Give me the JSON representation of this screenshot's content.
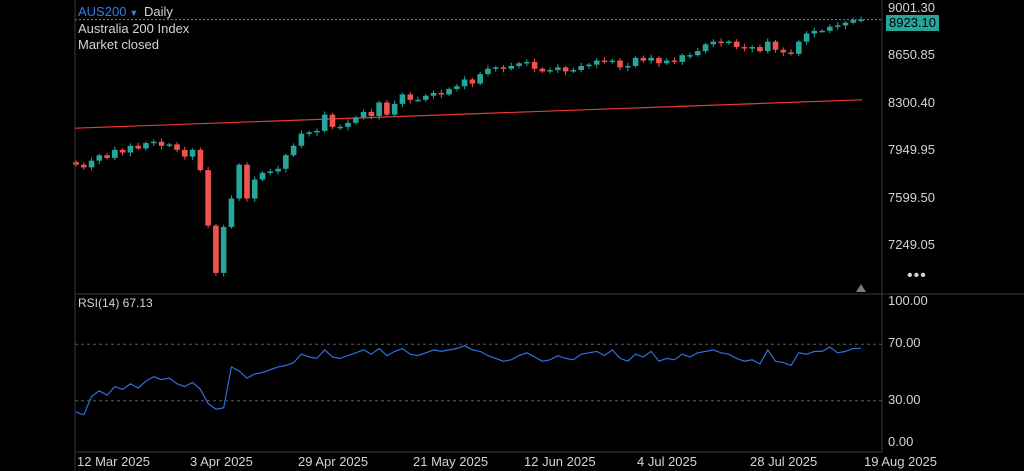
{
  "header": {
    "symbol": "AUS200",
    "interval": "Daily",
    "name": "Australia 200 Index",
    "status": "Market closed"
  },
  "last_price_label": "8923.10",
  "rsi_label": "RSI(14) 67.13",
  "more_label": "•••",
  "colors": {
    "up": "#26a69a",
    "down": "#ef5350",
    "ma": "#e53935",
    "rsi": "#2f6fe0",
    "grid": "#2a2e39",
    "price_line": "#26a69a"
  },
  "chart_data": [
    {
      "type": "candlestick",
      "title": "",
      "ylabel": "",
      "y_ticks": [
        "9001.30",
        "8650.85",
        "8300.40",
        "7949.95",
        "7599.50",
        "7249.05"
      ],
      "ylim": [
        6950,
        9060
      ],
      "x_ticks": [
        "12 Mar 2025",
        "3 Apr 2025",
        "29 Apr 2025",
        "21 May 2025",
        "12 Jun 2025",
        "4 Jul 2025",
        "28 Jul 2025",
        "19 Aug 2025"
      ],
      "ohlc_close": [
        7850,
        7830,
        7880,
        7920,
        7900,
        7960,
        7940,
        7990,
        7970,
        8010,
        8020,
        7990,
        8000,
        7960,
        7910,
        7960,
        7810,
        7400,
        7050,
        7390,
        7600,
        7850,
        7600,
        7740,
        7790,
        7800,
        7820,
        7920,
        7990,
        8080,
        8090,
        8100,
        8220,
        8130,
        8130,
        8160,
        8200,
        8240,
        8210,
        8310,
        8220,
        8300,
        8370,
        8330,
        8330,
        8360,
        8380,
        8370,
        8410,
        8430,
        8480,
        8450,
        8520,
        8560,
        8570,
        8560,
        8580,
        8600,
        8610,
        8560,
        8540,
        8550,
        8570,
        8540,
        8550,
        8580,
        8590,
        8620,
        8610,
        8620,
        8570,
        8580,
        8640,
        8620,
        8640,
        8600,
        8620,
        8610,
        8660,
        8660,
        8690,
        8740,
        8760,
        8750,
        8760,
        8720,
        8710,
        8720,
        8690,
        8760,
        8700,
        8680,
        8670,
        8760,
        8820,
        8840,
        8840,
        8870,
        8880,
        8900,
        8920,
        8923.1
      ],
      "moving_average": {
        "start": 8120,
        "end": 8330
      },
      "last_price": 8923.1
    },
    {
      "type": "line",
      "title": "RSI(14) 67.13",
      "ylabel": "",
      "y_ticks": [
        "100.00",
        "70.00",
        "30.00",
        "0.00"
      ],
      "ylim": [
        0,
        100
      ],
      "values": [
        22,
        20,
        33,
        37,
        34,
        40,
        38,
        42,
        39,
        44,
        47,
        45,
        46,
        42,
        40,
        43,
        38,
        28,
        24,
        25,
        54,
        51,
        46,
        49,
        50,
        52,
        54,
        55,
        57,
        63,
        61,
        60,
        66,
        61,
        60,
        62,
        64,
        66,
        63,
        67,
        62,
        65,
        67,
        63,
        62,
        64,
        66,
        65,
        66,
        67,
        69,
        66,
        65,
        62,
        60,
        58,
        59,
        62,
        64,
        61,
        58,
        59,
        62,
        60,
        59,
        63,
        64,
        65,
        62,
        66,
        60,
        58,
        63,
        61,
        65,
        58,
        60,
        59,
        63,
        61,
        64,
        65,
        66,
        64,
        63,
        60,
        58,
        59,
        56,
        66,
        58,
        57,
        55,
        64,
        63,
        65,
        65,
        68,
        64,
        65,
        67,
        67.13
      ],
      "last_value": 67.13
    }
  ]
}
